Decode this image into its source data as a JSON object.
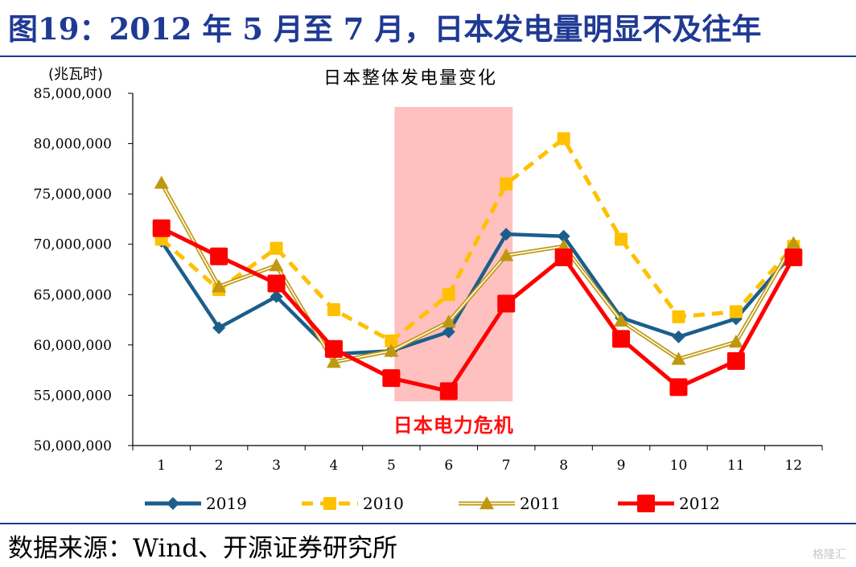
{
  "header": {
    "title": "图19：2012 年 5 月至 7 月，日本发电量明显不及往年"
  },
  "footer": {
    "source": "数据来源：Wind、开源证券研究所",
    "watermark": "格隆汇"
  },
  "chart_data": {
    "type": "line",
    "title": "日本整体发电量变化",
    "ylabel": "(兆瓦时)",
    "xlabel": "",
    "ylim": [
      50000000,
      85000000
    ],
    "yticks": [
      50000000,
      55000000,
      60000000,
      65000000,
      70000000,
      75000000,
      80000000,
      85000000
    ],
    "ytick_labels": [
      "50,000,000",
      "55,000,000",
      "60,000,000",
      "65,000,000",
      "70,000,000",
      "75,000,000",
      "80,000,000",
      "85,000,000"
    ],
    "categories": [
      "1",
      "2",
      "3",
      "4",
      "5",
      "6",
      "7",
      "8",
      "9",
      "10",
      "11",
      "12"
    ],
    "annotation": {
      "label": "日本电力危机",
      "x_range": [
        5,
        7
      ],
      "color": "#ffc0c0"
    },
    "legend_position": "bottom",
    "grid": false,
    "series": [
      {
        "name": "2019",
        "color": "#1b5e8c",
        "marker": "diamond",
        "style": "solid",
        "values": [
          70300000,
          61700000,
          64800000,
          59100000,
          59400000,
          61300000,
          71000000,
          70800000,
          62700000,
          60800000,
          62600000,
          69200000
        ]
      },
      {
        "name": "2010",
        "color": "#ffc000",
        "marker": "square",
        "style": "dashed",
        "values": [
          70500000,
          65500000,
          69600000,
          63500000,
          60400000,
          65000000,
          76000000,
          80500000,
          70500000,
          62800000,
          63300000,
          69800000
        ]
      },
      {
        "name": "2011",
        "color": "#c0980f",
        "marker": "triangle",
        "style": "double",
        "values": [
          76100000,
          65800000,
          67900000,
          58300000,
          59400000,
          62300000,
          68900000,
          69800000,
          62400000,
          58600000,
          60300000,
          70100000
        ]
      },
      {
        "name": "2012",
        "color": "#ff0000",
        "marker": "square",
        "style": "solid",
        "values": [
          71600000,
          68800000,
          66100000,
          59600000,
          56700000,
          55400000,
          64100000,
          68700000,
          60600000,
          55800000,
          58400000,
          68700000
        ]
      }
    ]
  }
}
